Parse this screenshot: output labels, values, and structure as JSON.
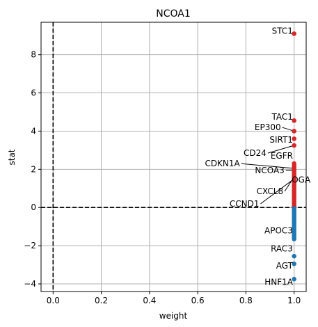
{
  "chart_data": {
    "type": "scatter",
    "title": "NCOA1",
    "xlabel": "weight",
    "ylabel": "stat",
    "xlim": [
      -0.05,
      1.05
    ],
    "ylim": [
      -4.4,
      9.7
    ],
    "xticks": [
      0.0,
      0.2,
      0.4,
      0.6,
      0.8,
      1.0
    ],
    "xtick_labels": [
      "0.0",
      "0.2",
      "0.4",
      "0.6",
      "0.8",
      "1.0"
    ],
    "yticks": [
      -4,
      -2,
      0,
      2,
      4,
      6,
      8
    ],
    "ytick_labels": [
      "−4",
      "−2",
      "0",
      "2",
      "4",
      "6",
      "8"
    ],
    "grid": true,
    "reference_lines": [
      {
        "orientation": "vertical",
        "value": 0,
        "style": "dashed",
        "color": "#000000"
      },
      {
        "orientation": "horizontal",
        "value": 0,
        "style": "dashed",
        "color": "#000000"
      }
    ],
    "colors": {
      "positive": "#d62728",
      "negative": "#1f77b4"
    },
    "points": [
      {
        "x": 1.0,
        "y": 9.1
      },
      {
        "x": 1.0,
        "y": 4.55
      },
      {
        "x": 1.0,
        "y": 4.0
      },
      {
        "x": 1.0,
        "y": 3.6
      },
      {
        "x": 1.0,
        "y": 3.25
      },
      {
        "x": 1.0,
        "y": 2.3
      },
      {
        "x": 1.0,
        "y": 2.2
      },
      {
        "x": 1.0,
        "y": 2.1
      },
      {
        "x": 1.0,
        "y": 2.0
      },
      {
        "x": 1.0,
        "y": 1.9
      },
      {
        "x": 1.0,
        "y": 1.8
      },
      {
        "x": 1.0,
        "y": 1.7
      },
      {
        "x": 1.0,
        "y": 1.6
      },
      {
        "x": 1.0,
        "y": 1.5
      },
      {
        "x": 1.0,
        "y": 1.4
      },
      {
        "x": 1.0,
        "y": 1.3
      },
      {
        "x": 1.0,
        "y": 1.2
      },
      {
        "x": 1.0,
        "y": 1.1
      },
      {
        "x": 1.0,
        "y": 1.0
      },
      {
        "x": 1.0,
        "y": 0.9
      },
      {
        "x": 1.0,
        "y": 0.8
      },
      {
        "x": 1.0,
        "y": 0.7
      },
      {
        "x": 1.0,
        "y": 0.6
      },
      {
        "x": 1.0,
        "y": 0.5
      },
      {
        "x": 1.0,
        "y": 0.4
      },
      {
        "x": 1.0,
        "y": 0.3
      },
      {
        "x": 1.0,
        "y": 0.2
      },
      {
        "x": 1.0,
        "y": 0.1
      },
      {
        "x": 1.0,
        "y": 0.05
      },
      {
        "x": 1.0,
        "y": -0.05
      },
      {
        "x": 1.0,
        "y": -0.15
      },
      {
        "x": 1.0,
        "y": -0.25
      },
      {
        "x": 1.0,
        "y": -0.35
      },
      {
        "x": 1.0,
        "y": -0.45
      },
      {
        "x": 1.0,
        "y": -0.55
      },
      {
        "x": 1.0,
        "y": -0.65
      },
      {
        "x": 1.0,
        "y": -0.75
      },
      {
        "x": 1.0,
        "y": -0.85
      },
      {
        "x": 1.0,
        "y": -0.95
      },
      {
        "x": 1.0,
        "y": -1.05
      },
      {
        "x": 1.0,
        "y": -1.15
      },
      {
        "x": 1.0,
        "y": -1.25
      },
      {
        "x": 1.0,
        "y": -1.35
      },
      {
        "x": 1.0,
        "y": -1.45
      },
      {
        "x": 1.0,
        "y": -1.55
      },
      {
        "x": 1.0,
        "y": -1.65
      },
      {
        "x": 1.0,
        "y": -2.55
      },
      {
        "x": 1.0,
        "y": -2.95
      },
      {
        "x": 1.0,
        "y": -3.75
      }
    ],
    "annotations": [
      {
        "text": "STC1",
        "x": 1.0,
        "y": 9.1,
        "tx": 0.995,
        "ty": 9.1,
        "anchor": "end"
      },
      {
        "text": "TAC1",
        "x": 1.0,
        "y": 4.55,
        "tx": 0.995,
        "ty": 4.6,
        "anchor": "end"
      },
      {
        "text": "EP300",
        "x": 1.0,
        "y": 4.0,
        "tx": 0.945,
        "ty": 4.05,
        "anchor": "end",
        "leader": true
      },
      {
        "text": "SIRT1",
        "x": 1.0,
        "y": 3.6,
        "tx": 0.995,
        "ty": 3.4,
        "anchor": "end"
      },
      {
        "text": "CD24",
        "x": 1.0,
        "y": 3.25,
        "tx": 0.885,
        "ty": 2.7,
        "anchor": "end",
        "leader": true
      },
      {
        "text": "EGFR",
        "x": 1.0,
        "y": 2.3,
        "tx": 0.995,
        "ty": 2.55,
        "anchor": "end"
      },
      {
        "text": "CDKN1A",
        "x": 1.0,
        "y": 2.05,
        "tx": 0.775,
        "ty": 2.15,
        "anchor": "end",
        "leader": true
      },
      {
        "text": "NCOA3",
        "x": 1.0,
        "y": 1.95,
        "tx": 0.96,
        "ty": 1.8,
        "anchor": "end",
        "leader": true
      },
      {
        "text": "OGA",
        "x": 1.0,
        "y": 1.55,
        "tx": 0.99,
        "ty": 1.3,
        "anchor": "start"
      },
      {
        "text": "CXCL8",
        "x": 1.0,
        "y": 1.6,
        "tx": 0.955,
        "ty": 0.7,
        "anchor": "end",
        "leader": true
      },
      {
        "text": "CCND1",
        "x": 1.0,
        "y": 1.5,
        "tx": 0.855,
        "ty": 0.05,
        "anchor": "end",
        "leader": true
      },
      {
        "text": "APOC3",
        "x": 1.0,
        "y": -1.3,
        "tx": 0.995,
        "ty": -1.35,
        "anchor": "end"
      },
      {
        "text": "RAC3",
        "x": 1.0,
        "y": -2.55,
        "tx": 0.995,
        "ty": -2.3,
        "anchor": "end"
      },
      {
        "text": "AGT",
        "x": 1.0,
        "y": -2.95,
        "tx": 0.995,
        "ty": -3.2,
        "anchor": "end"
      },
      {
        "text": "HNF1A",
        "x": 1.0,
        "y": -3.75,
        "tx": 0.995,
        "ty": -4.05,
        "anchor": "end"
      }
    ]
  }
}
